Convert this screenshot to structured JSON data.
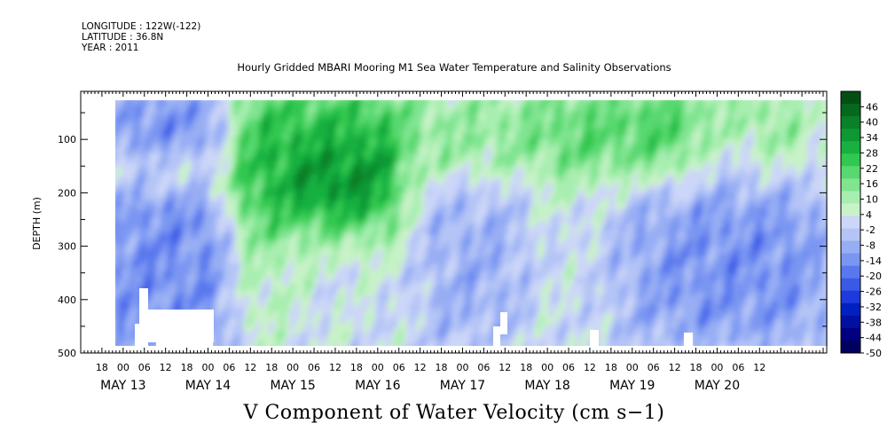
{
  "header": {
    "longitude": "LONGITUDE : 122W(-122)",
    "latitude": "LATITUDE : 36.8N",
    "year": "YEAR : 2011"
  },
  "title": "Hourly Gridded MBARI Mooring M1 Sea Water Temperature and Salinity Observations",
  "bottom_title": "V Component of Water Velocity (cm s−1)",
  "chart_data": {
    "type": "heatmap",
    "title": "Hourly Gridded MBARI Mooring M1 Sea Water Temperature and Salinity Observations",
    "variable": "V Component of Water Velocity (cm s−1)",
    "ylabel": "DEPTH (m)",
    "ylim": [
      500,
      10
    ],
    "yticks": [
      100,
      200,
      300,
      400,
      500
    ],
    "y_inverted": true,
    "xlim_hours": [
      0,
      211
    ],
    "x_hour_ticks": [
      "18",
      "00",
      "06",
      "12",
      "18",
      "00",
      "06",
      "12",
      "18",
      "00",
      "06",
      "12",
      "18",
      "00",
      "06",
      "12",
      "18",
      "00",
      "06",
      "12",
      "18",
      "00",
      "06",
      "12",
      "18",
      "00",
      "06",
      "12",
      "18",
      "00",
      "06",
      "12"
    ],
    "x_days": [
      "MAY 13",
      "MAY 14",
      "MAY 15",
      "MAY 16",
      "MAY 17",
      "MAY 18",
      "MAY 19",
      "MAY 20"
    ],
    "colorbar_levels": [
      46,
      40,
      34,
      28,
      22,
      16,
      10,
      4,
      -2,
      -8,
      -14,
      -20,
      -26,
      -32,
      -38,
      -44,
      -50
    ],
    "colorbar_range": [
      -50,
      52
    ],
    "colorbar_colors": [
      "#000060",
      "#000080",
      "#0010a0",
      "#0020c0",
      "#1d3adc",
      "#3a5ae6",
      "#5a78ee",
      "#7a96f2",
      "#98aef4",
      "#b4c4f6",
      "#ccd6f8",
      "#c8f2c8",
      "#a8eeb0",
      "#80e490",
      "#58d870",
      "#30c850",
      "#18b040",
      "#0e9834",
      "#0a8028",
      "#06681e",
      "#044e14"
    ],
    "description_regions": [
      {
        "time_start": "May 13 06:00",
        "time_end": "May 14 18:00",
        "depth": "20-480 m",
        "sign": "negative"
      },
      {
        "time_start": "May 14 18:00",
        "time_end": "May 16 18:00",
        "depth": "20-260 m",
        "sign": "positive, max ~40"
      },
      {
        "time_start": "May 18 00:00",
        "time_end": "May 20 12:00",
        "depth": "20-150 m",
        "sign": "positive"
      },
      {
        "time_start": "May 18 12:00",
        "time_end": "May 20 12:00",
        "depth": "200-480 m",
        "sign": "negative"
      }
    ]
  }
}
